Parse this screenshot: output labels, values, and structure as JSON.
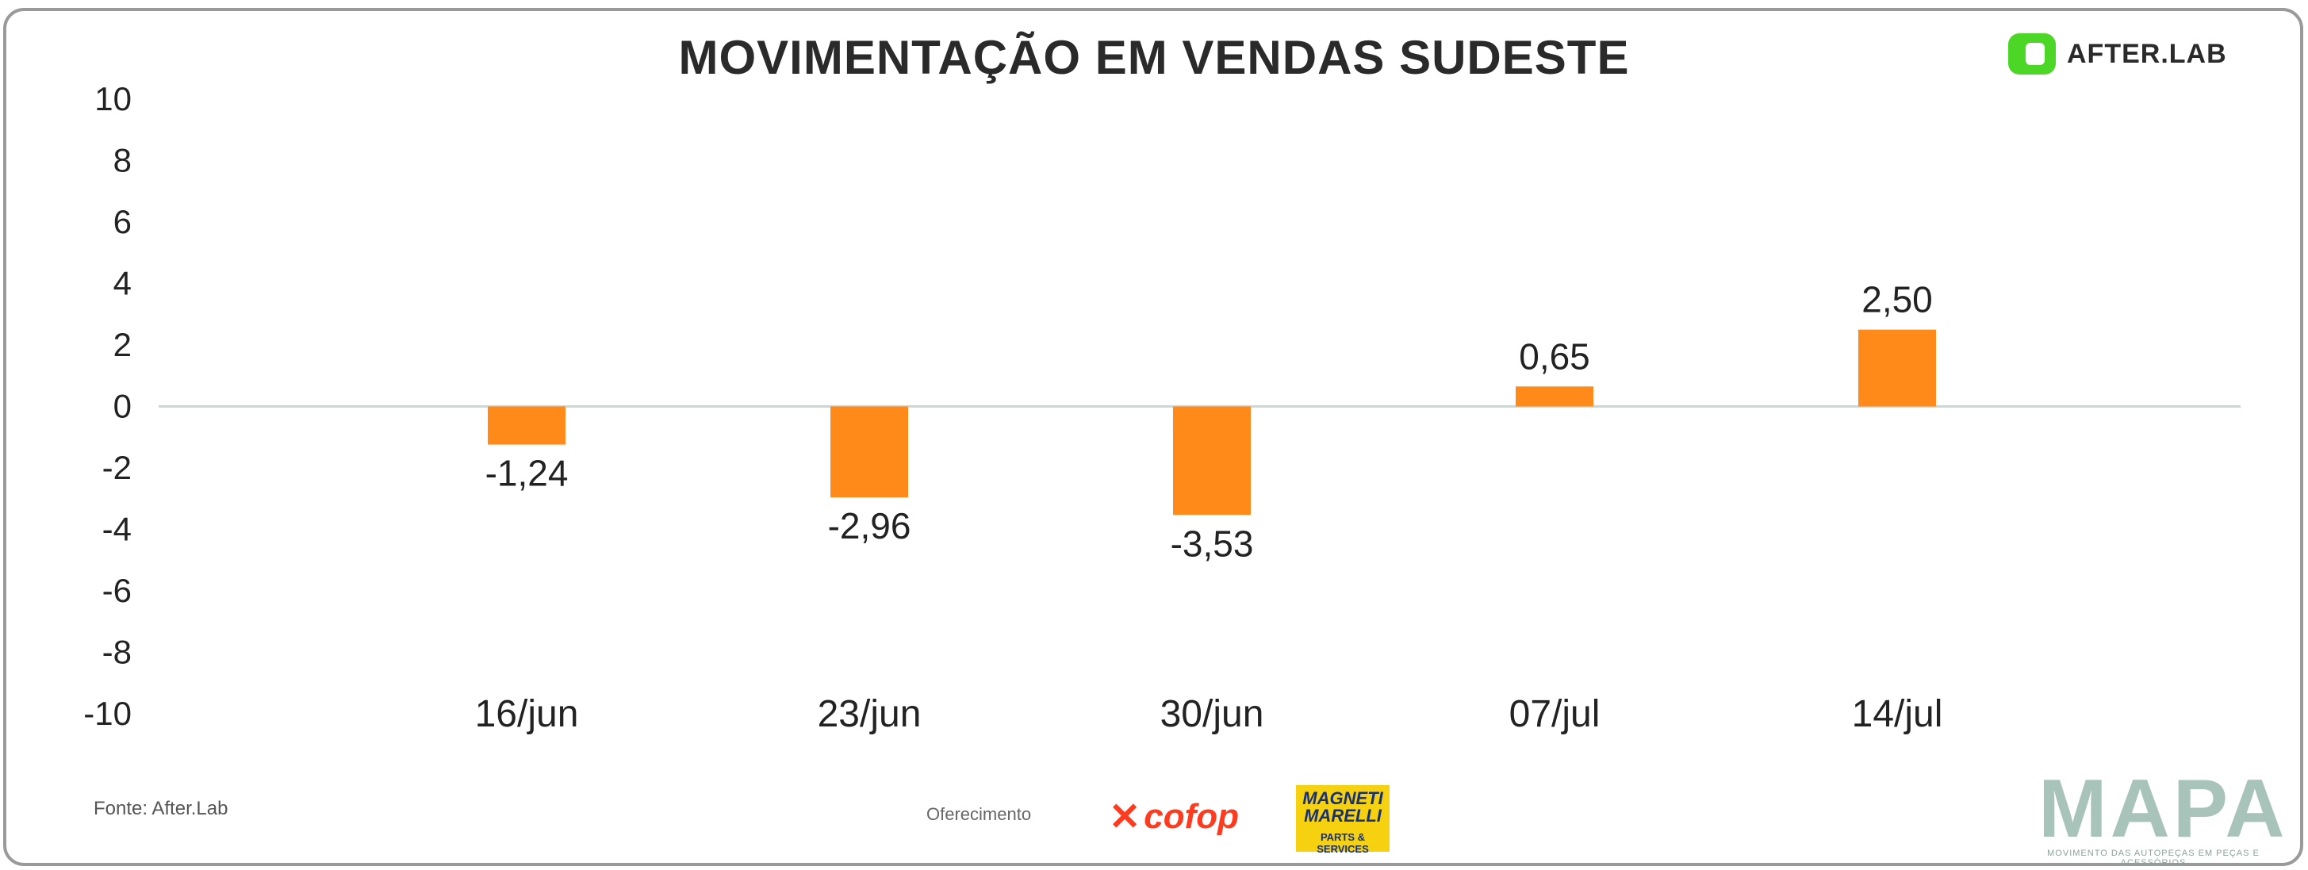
{
  "footer": {
    "source": "Fonte: After.Lab",
    "sponsor_label": "Oferecimento",
    "sponsors": [
      "cofop",
      "MAGNETI MARELLI",
      "PARTS & SERVICES"
    ]
  },
  "brand": {
    "name": "AFTER.LAB",
    "mark_color": "#4cd626",
    "wordmark": "MAPA",
    "wordmark_tagline": "MOVIMENTO DAS AUTOPEÇAS EM PEÇAS E ACESSÓRIOS"
  },
  "colors": {
    "bar": "#ff8a1a",
    "zero_line": "#c9d8d4",
    "text": "#222222"
  },
  "chart_data": {
    "type": "bar",
    "title": "MOVIMENTAÇÃO EM VENDAS SUDESTE",
    "categories": [
      "16/jun",
      "23/jun",
      "30/jun",
      "07/jul",
      "14/jul"
    ],
    "values": [
      -1.24,
      -2.96,
      -3.53,
      0.65,
      2.5
    ],
    "data_labels": [
      "-1,24",
      "-2,96",
      "-3,53",
      "0,65",
      "2,50"
    ],
    "ylim": [
      -10,
      10
    ],
    "yticks": [
      10,
      8,
      6,
      4,
      2,
      0,
      -2,
      -4,
      -6,
      -8,
      -10
    ],
    "xlabel": "",
    "ylabel": "",
    "grid": false,
    "legend": "none"
  }
}
